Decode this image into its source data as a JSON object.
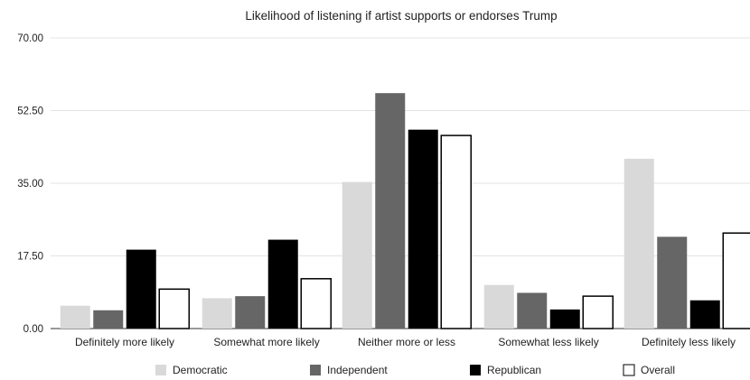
{
  "chart_data": {
    "type": "bar",
    "title": "Likelihood of listening if artist supports or endorses Trump",
    "xlabel": "",
    "ylabel": "",
    "ylim": [
      0,
      70
    ],
    "yticks": [
      "0.00",
      "17.50",
      "35.00",
      "52.50",
      "70.00"
    ],
    "grid": true,
    "legend_position": "bottom",
    "categories": [
      "Definitely more likely",
      "Somewhat more likely",
      "Neither more or less",
      "Somewhat less likely",
      "Definitely less likely"
    ],
    "series": [
      {
        "name": "Democratic",
        "color": "#d9d9d9",
        "values": [
          5.5,
          7.3,
          35.3,
          10.5,
          40.9
        ]
      },
      {
        "name": "Independent",
        "color": "#666666",
        "values": [
          4.4,
          7.8,
          56.7,
          8.6,
          22.1
        ]
      },
      {
        "name": "Republican",
        "color": "#000000",
        "values": [
          19.0,
          21.4,
          47.9,
          4.6,
          6.8
        ]
      },
      {
        "name": "Overall",
        "color": "#ffffff",
        "values": [
          9.5,
          12.0,
          46.5,
          7.8,
          23.0
        ]
      }
    ]
  }
}
